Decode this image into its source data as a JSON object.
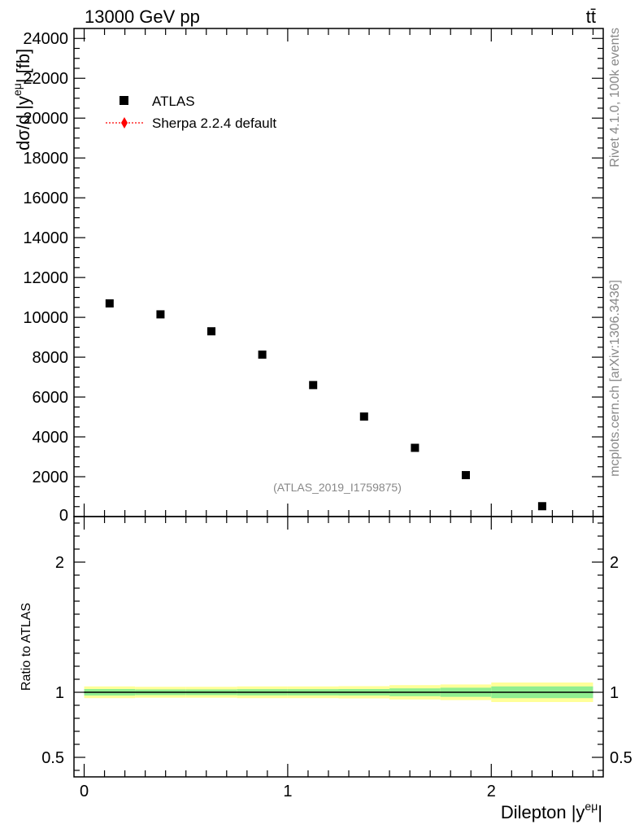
{
  "header": {
    "energy_label": "13000 GeV pp",
    "process_label": "tt̄"
  },
  "side_labels": {
    "rivet": "Rivet 4.1.0,  100k events",
    "mcplots": "mcplots.cern.ch [arXiv:1306.3436]"
  },
  "watermark": "(ATLAS_2019_I1759875)",
  "colors": {
    "data_marker": "#000000",
    "mc_line": "#ff0000",
    "band_inner": "#90ee90",
    "band_outer": "#ffff99"
  },
  "chart_data": [
    {
      "type": "scatter",
      "panel": "main",
      "ylabel": "dσ/d |y",
      "ylabel_sup": "eμ",
      "ylabel_tail": "| [fb]",
      "xlim": [
        -0.05,
        2.55
      ],
      "ylim": [
        0,
        24500
      ],
      "yticks": [
        2000,
        4000,
        6000,
        8000,
        10000,
        12000,
        14000,
        16000,
        18000,
        20000,
        22000,
        24000
      ],
      "ytick_labels": [
        "2000",
        "4000",
        "6000",
        "8000",
        "10000",
        "12000",
        "14000",
        "16000",
        "18000",
        "20000",
        "22000",
        "24000"
      ],
      "bottom_tick_label": "0",
      "legend_position": "top-left",
      "series": [
        {
          "name": "ATLAS",
          "marker": "square",
          "x": [
            0.125,
            0.375,
            0.625,
            0.875,
            1.125,
            1.375,
            1.625,
            1.875,
            2.25
          ],
          "y": [
            10700,
            10150,
            9300,
            8130,
            6600,
            5020,
            3450,
            2080,
            520
          ]
        },
        {
          "name": "Sherpa 2.2.4 default",
          "marker": "diamond",
          "line": "dotted",
          "x": [],
          "y": []
        }
      ]
    },
    {
      "type": "area",
      "panel": "ratio",
      "ylabel": "Ratio to ATLAS",
      "xlabel": "Dilepton |y",
      "xlabel_sup": "eμ",
      "xlabel_tail": "|",
      "xlim": [
        -0.05,
        2.55
      ],
      "ylim": [
        0.35,
        2.35
      ],
      "xticks": [
        0,
        1,
        2
      ],
      "xtick_labels": [
        "0",
        "1",
        "2"
      ],
      "yticks": [
        0.5,
        1,
        2
      ],
      "ytick_labels": [
        "0.5",
        "1",
        "2"
      ],
      "bins": [
        [
          0,
          0.25
        ],
        [
          0.25,
          0.5
        ],
        [
          0.5,
          0.75
        ],
        [
          0.75,
          1.0
        ],
        [
          1.0,
          1.25
        ],
        [
          1.25,
          1.5
        ],
        [
          1.5,
          1.75
        ],
        [
          1.75,
          2.0
        ],
        [
          2.0,
          2.5
        ]
      ],
      "band_inner": [
        0.025,
        0.022,
        0.022,
        0.024,
        0.024,
        0.025,
        0.03,
        0.035,
        0.045
      ],
      "band_outer": [
        0.045,
        0.042,
        0.042,
        0.045,
        0.045,
        0.047,
        0.055,
        0.06,
        0.075
      ]
    }
  ]
}
